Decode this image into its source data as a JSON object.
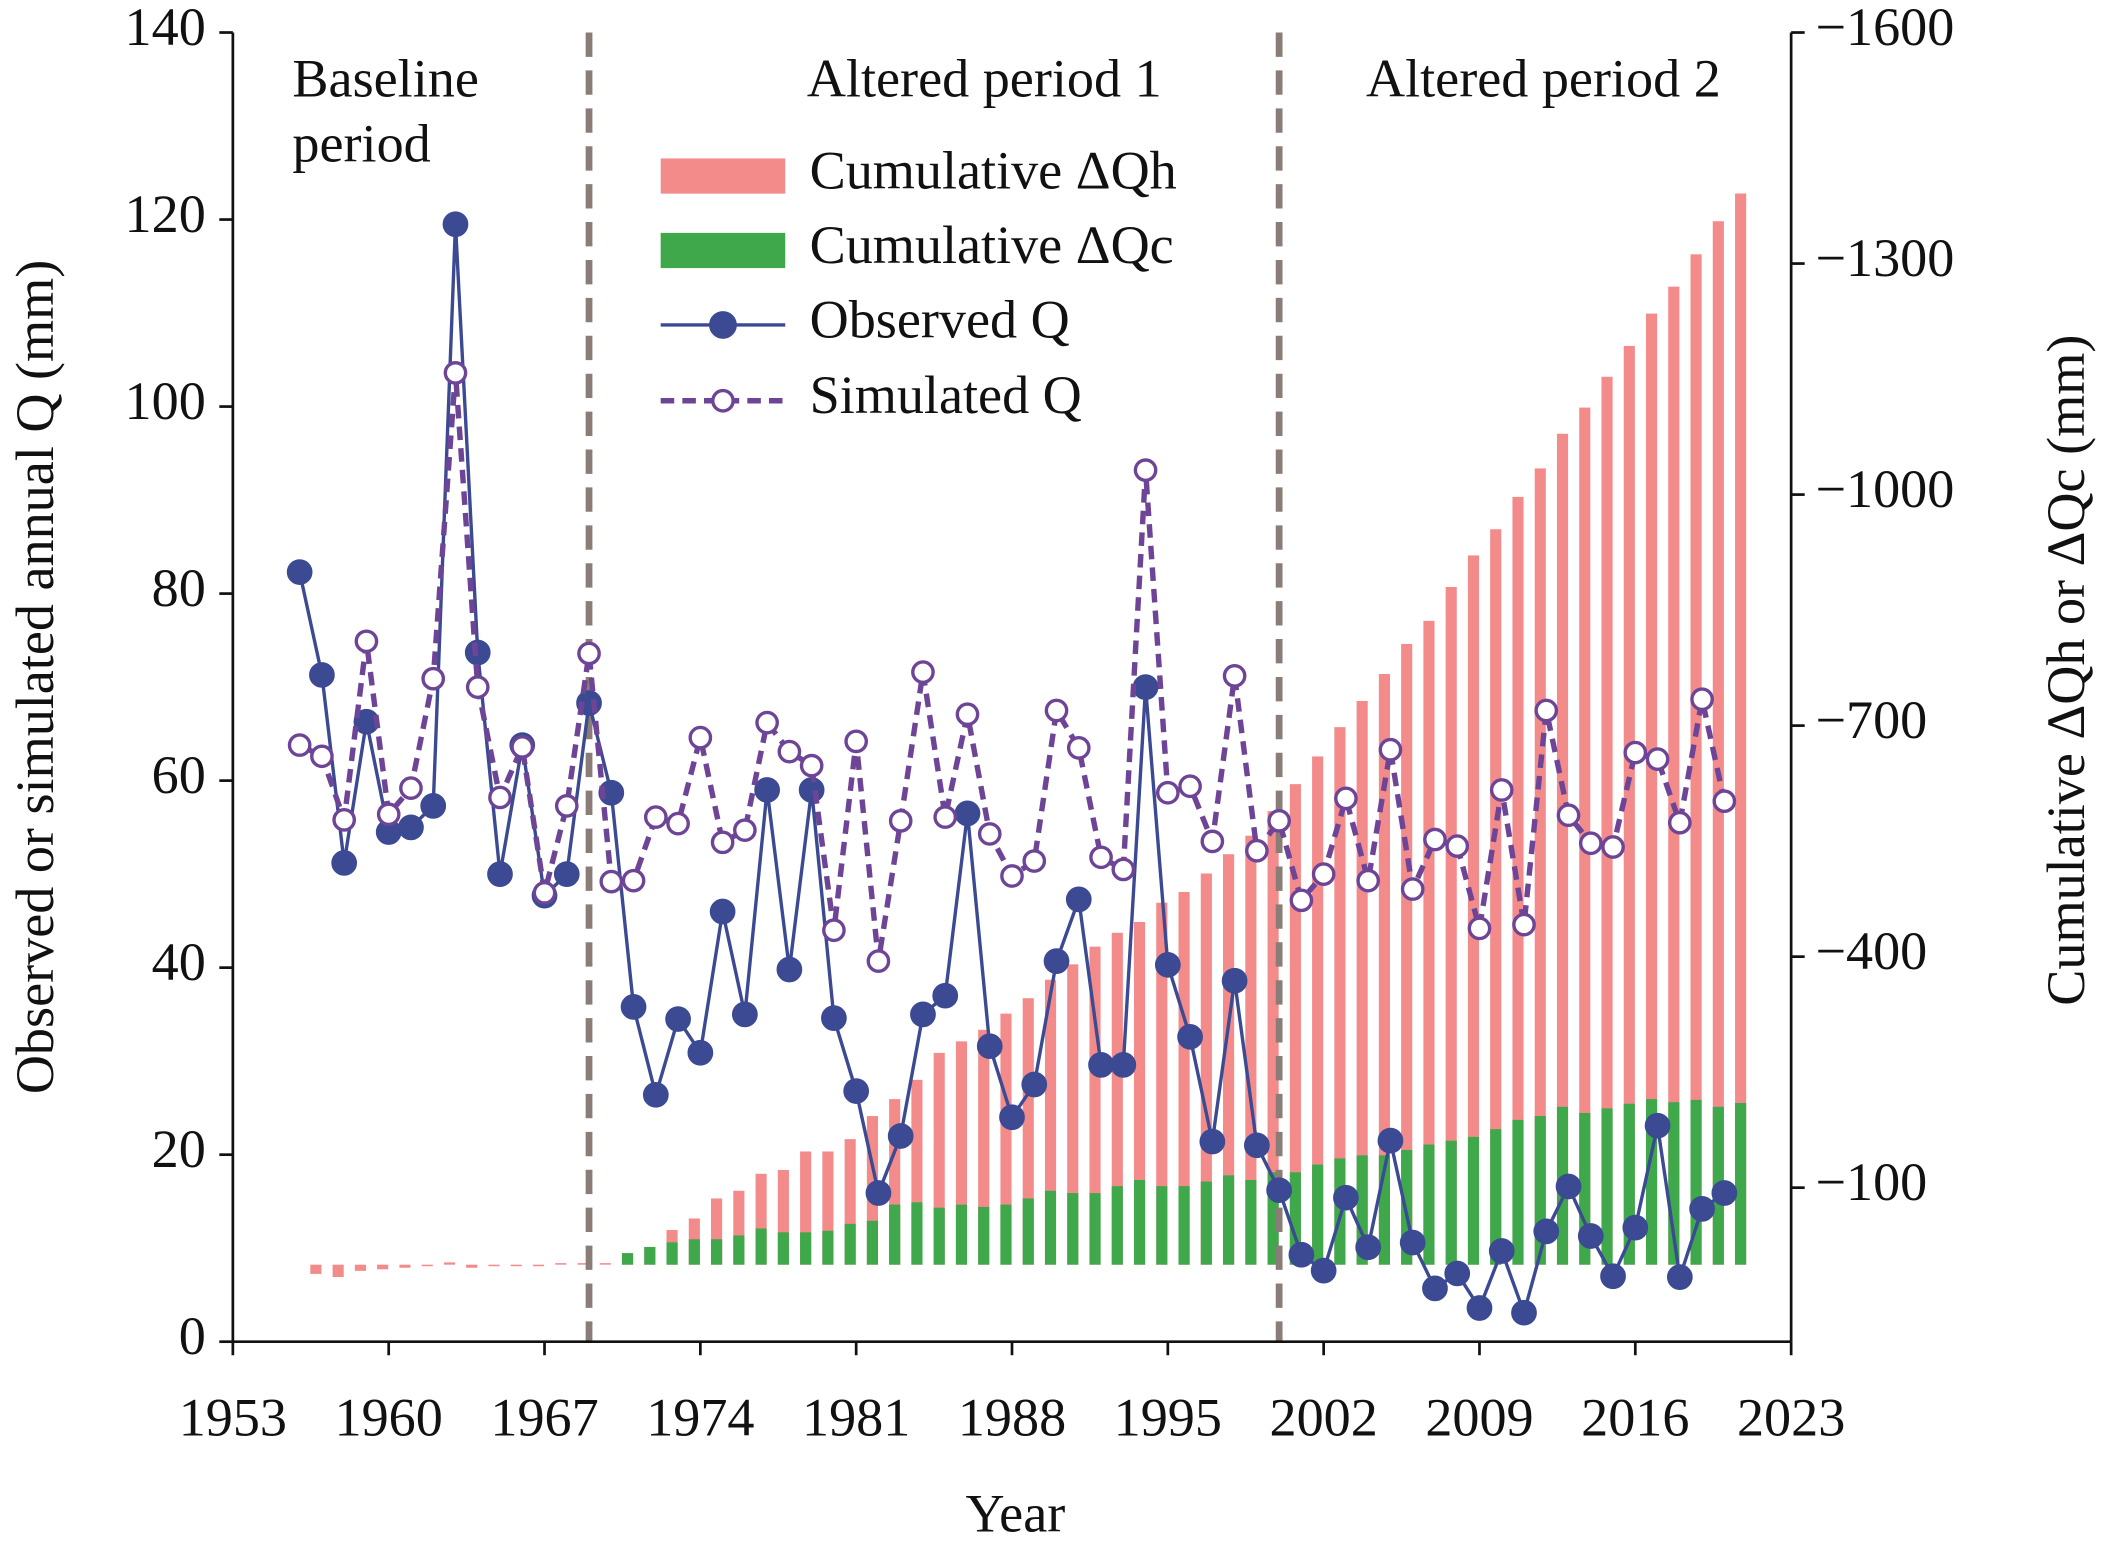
{
  "chart_data": {
    "type": "combo",
    "xlabel": "Year",
    "ylabel": "Observed or simulated annual Q (mm)",
    "y2label": "Cumulative ΔQh or ΔQc (mm)",
    "annotations": [
      [
        "Baseline",
        "period"
      ],
      [
        "Altered period 1"
      ],
      [
        "Altered period 2"
      ]
    ],
    "period_breaks": [
      1969,
      2000
    ],
    "x": [
      1956,
      1957,
      1958,
      1959,
      1960,
      1961,
      1962,
      1963,
      1964,
      1965,
      1966,
      1967,
      1968,
      1969,
      1970,
      1971,
      1972,
      1973,
      1974,
      1975,
      1976,
      1977,
      1978,
      1979,
      1980,
      1981,
      1982,
      1983,
      1984,
      1985,
      1986,
      1987,
      1988,
      1989,
      1990,
      1991,
      1992,
      1993,
      1994,
      1995,
      1996,
      1997,
      1998,
      1999,
      2000,
      2001,
      2002,
      2003,
      2004,
      2005,
      2006,
      2007,
      2008,
      2009,
      2010,
      2011,
      2012,
      2013,
      2014,
      2015,
      2016,
      2017,
      2018,
      2019,
      2020
    ],
    "series": [
      {
        "name": "Cumulative ΔQh",
        "type": "bar",
        "axis": "y2",
        "color": "#f38b8b",
        "values": [
          12,
          16,
          8,
          6,
          4,
          2,
          -3,
          4,
          2,
          2,
          2,
          -2,
          -2,
          -2,
          -15,
          -23,
          -45,
          -60,
          -86,
          -96,
          -118,
          -123,
          -147,
          -147,
          -163,
          -193,
          -215,
          -240,
          -275,
          -290,
          -305,
          -326,
          -346,
          -370,
          -390,
          -413,
          -431,
          -445,
          -470,
          -484,
          -508,
          -533,
          -557,
          -589,
          -624,
          -660,
          -698,
          -732,
          -767,
          -806,
          -836,
          -880,
          -921,
          -955,
          -997,
          -1034,
          -1079,
          -1113,
          -1153,
          -1193,
          -1235,
          -1270,
          -1312,
          -1355,
          -1391
        ]
      },
      {
        "name": "Cumulative ΔQc",
        "type": "bar",
        "axis": "y2",
        "color": "#3ea84a",
        "values": [
          null,
          null,
          null,
          null,
          null,
          null,
          null,
          null,
          null,
          null,
          null,
          null,
          null,
          null,
          -15,
          -23,
          -29,
          -33,
          -33,
          -38,
          -47,
          -42,
          -42,
          -44,
          -53,
          -57,
          -78,
          -81,
          -74,
          -78,
          -75,
          -78,
          -86,
          -96,
          -93,
          -93,
          -102,
          -110,
          -102,
          -102,
          -108,
          -116,
          -110,
          -120,
          -120,
          -130,
          -138,
          -142,
          -142,
          -149,
          -156,
          -161,
          -166,
          -176,
          -188,
          -193,
          -205,
          -197,
          -203,
          -209,
          -215,
          -211,
          -214,
          -205,
          -210
        ]
      },
      {
        "name": "Observed Q",
        "type": "line",
        "color": "#3b4a92",
        "marker": "filled",
        "values": [
          82.3,
          71.3,
          51.2,
          66.3,
          54.5,
          55,
          57.3,
          119.5,
          73.7,
          50,
          63.8,
          47.7,
          50,
          68.3,
          58.7,
          35.8,
          26.4,
          34.5,
          30.9,
          46,
          35,
          59,
          39.8,
          59,
          34.6,
          26.8,
          15.9,
          22,
          35,
          37,
          56.5,
          31.6,
          24,
          27.5,
          40.7,
          47.3,
          29.6,
          29.6,
          70,
          40.3,
          32.6,
          21.4,
          38.6,
          21,
          16.2,
          9.3,
          7.6,
          15.4,
          10.1,
          21.5,
          10.6,
          5.7,
          7.3,
          3.6,
          9.7,
          3.1,
          11.8,
          16.6,
          11.3,
          7,
          12.2,
          23.1,
          6.9,
          14.2,
          15.9
        ]
      },
      {
        "name": "Simulated Q",
        "type": "line",
        "color": "#6e4596",
        "marker": "hollow",
        "dashed": true,
        "values": [
          63.8,
          62.6,
          55.8,
          74.9,
          56.4,
          59.2,
          70.9,
          103.6,
          70,
          58.2,
          63.6,
          48,
          57.3,
          73.6,
          49.2,
          49.3,
          56.1,
          55.4,
          64.6,
          53.4,
          54.7,
          66.2,
          63.1,
          61.6,
          44,
          64.2,
          40.7,
          55.7,
          71.6,
          56.1,
          67.1,
          54.3,
          49.8,
          51.4,
          67.5,
          63.5,
          51.8,
          50.5,
          93.2,
          58.7,
          59.4,
          53.5,
          71.2,
          52.5,
          55.7,
          47.2,
          50,
          58.1,
          49.3,
          63.3,
          48.4,
          53.7,
          53,
          44.2,
          59,
          44.6,
          67.5,
          56.3,
          53.3,
          52.9,
          63,
          62.3,
          55.5,
          68.7,
          57.8
        ]
      }
    ],
    "xlim": [
      1953,
      2023
    ],
    "xticks": [
      1953,
      1960,
      1967,
      1974,
      1981,
      1988,
      1995,
      2002,
      2009,
      2016,
      2023
    ],
    "ylim": [
      0,
      140
    ],
    "yticks": [
      0,
      20,
      40,
      60,
      80,
      100,
      120,
      140
    ],
    "y2lim": [
      100,
      -1600
    ],
    "y2ticks": [
      {
        "value": -1600,
        "label": "−1600"
      },
      {
        "value": -1300,
        "label": "−1300"
      },
      {
        "value": -1000,
        "label": "−1000"
      },
      {
        "value": -700,
        "label": "−700"
      },
      {
        "value": -400,
        "label": "−400"
      },
      {
        "value": -100,
        "label": "−100"
      }
    ],
    "break_color": "#8a7d78",
    "legend": "upper center"
  }
}
